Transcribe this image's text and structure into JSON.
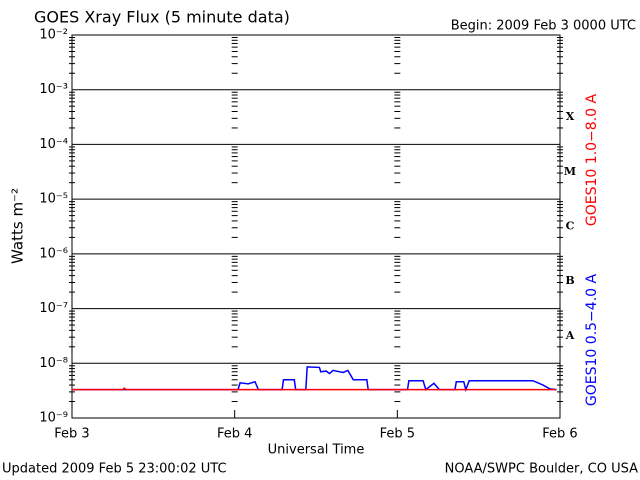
{
  "chart_data": {
    "type": "line",
    "title": "GOES Xray Flux (5 minute data)",
    "subtitle": "Begin:  2009 Feb 3 0000 UTC",
    "y_label": "Watts m⁻²",
    "x_label": "Universal Time",
    "footer_left": "Updated 2009 Feb  5 23:00:02 UTC",
    "footer_right": "NOAA/SWPC Boulder, CO USA",
    "log_y": true,
    "grid": true,
    "xlim": [
      0,
      72
    ],
    "xticks": [
      {
        "value": 0,
        "label": "Feb 3"
      },
      {
        "value": 24,
        "label": "Feb 4"
      },
      {
        "value": 48,
        "label": "Feb 5"
      },
      {
        "value": 72,
        "label": "Feb 6"
      }
    ],
    "ylim": [
      1e-09,
      0.01
    ],
    "yticks": [
      {
        "value": 1e-09,
        "label": "10⁻⁹"
      },
      {
        "value": 1e-08,
        "label": "10⁻⁸"
      },
      {
        "value": 1e-07,
        "label": "10⁻⁷"
      },
      {
        "value": 1e-06,
        "label": "10⁻⁶"
      },
      {
        "value": 1e-05,
        "label": "10⁻⁵"
      },
      {
        "value": 0.0001,
        "label": "10⁻⁴"
      },
      {
        "value": 0.001,
        "label": "10⁻³"
      },
      {
        "value": 0.01,
        "label": "10⁻²"
      }
    ],
    "flare_classes": [
      {
        "label": "X",
        "value": 0.0001
      },
      {
        "label": "M",
        "value": 1e-05
      },
      {
        "label": "C",
        "value": 1e-06
      },
      {
        "label": "B",
        "value": 1e-07
      },
      {
        "label": "A",
        "value": 1e-08
      }
    ],
    "series": [
      {
        "name": "GOES10 0.5−4.0 A",
        "color": "#0000ff",
        "x": [
          0,
          24.5,
          24.8,
          26,
          27,
          27.5,
          31,
          31.2,
          32.8,
          33,
          34.5,
          34.7,
          36.5,
          36.7,
          37.5,
          38,
          38.5,
          40,
          40.7,
          41.5,
          43.5,
          43.7,
          49.5,
          49.7,
          51.8,
          52.2,
          53.4,
          54.2,
          56.5,
          56.7,
          57.8,
          58.1,
          58.6,
          68,
          69.5,
          70.5,
          71.5
        ],
        "values": [
          3.3e-09,
          3.3e-09,
          4.4e-09,
          4.2e-09,
          4.6e-09,
          3.3e-09,
          3.3e-09,
          5e-09,
          5e-09,
          3.3e-09,
          3.3e-09,
          8.6e-09,
          8.4e-09,
          7e-09,
          7.2e-09,
          6.5e-09,
          7.4e-09,
          6.8e-09,
          7.4e-09,
          5e-09,
          5e-09,
          3.3e-09,
          3.3e-09,
          4.8e-09,
          4.8e-09,
          3.3e-09,
          4.3e-09,
          3.3e-09,
          3.3e-09,
          4.6e-09,
          4.6e-09,
          3.3e-09,
          4.8e-09,
          4.8e-09,
          4e-09,
          3.4e-09,
          3.3e-09
        ]
      },
      {
        "name": "GOES10 1.0−8.0 A",
        "color": "#ff0000",
        "x": [
          0,
          7.5,
          7.7,
          8,
          71.4
        ],
        "values": [
          3.3e-09,
          3.3e-09,
          3.5e-09,
          3.3e-09,
          3.3e-09
        ]
      }
    ]
  }
}
